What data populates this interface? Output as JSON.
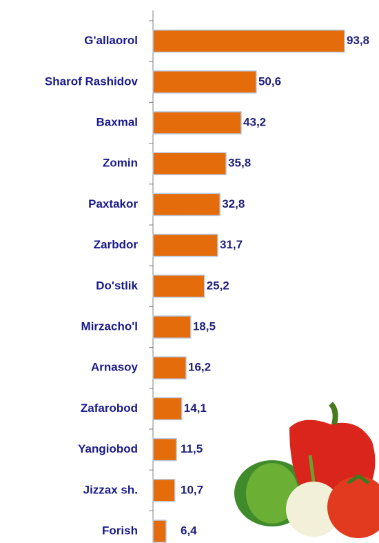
{
  "chart_data": {
    "type": "bar",
    "orientation": "horizontal",
    "categories": [
      "G'allaorol",
      "Sharof Rashidov",
      "Baxmal",
      "Zomin",
      "Paxtakor",
      "Zarbdor",
      "Do'stlik",
      "Mirzacho'l",
      "Arnasoy",
      "Zafarobod",
      "Yangiobod",
      "Jizzax sh.",
      "Forish"
    ],
    "values": [
      93.8,
      50.6,
      43.2,
      35.8,
      32.8,
      31.7,
      25.2,
      18.5,
      16.2,
      14.1,
      11.5,
      10.7,
      6.4
    ],
    "value_labels": [
      "93,8",
      "50,6",
      "43,2",
      "35,8",
      "32,8",
      "31,7",
      "25,2",
      "18,5",
      "16,2",
      "14,1",
      "11,5",
      "10,7",
      "6,4"
    ],
    "color": "#e46c0a"
  }
}
